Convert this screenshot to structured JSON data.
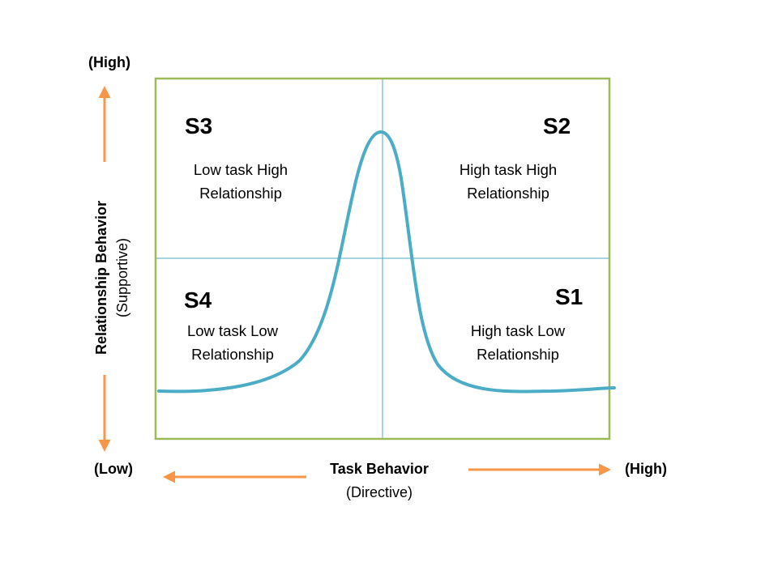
{
  "y_axis": {
    "high_label": "(High)",
    "low_label": "(Low)",
    "title": "Relationship Behavior",
    "subtitle": "(Supportive)"
  },
  "x_axis": {
    "low_label": "(Low)",
    "high_label": "(High)",
    "title": "Task Behavior",
    "subtitle": "(Directive)"
  },
  "quadrants": {
    "s3": {
      "code": "S3",
      "line1": "Low task High",
      "line2": "Relationship"
    },
    "s2": {
      "code": "S2",
      "line1": "High task High",
      "line2": "Relationship"
    },
    "s4": {
      "code": "S4",
      "line1": "Low task Low",
      "line2": "Relationship"
    },
    "s1": {
      "code": "S1",
      "line1": "High task Low",
      "line2": "Relationship"
    }
  },
  "colors": {
    "frame": "#9bbb59",
    "grid": "#4bacc6",
    "curve": "#4bacc6",
    "arrow": "#f79646"
  }
}
